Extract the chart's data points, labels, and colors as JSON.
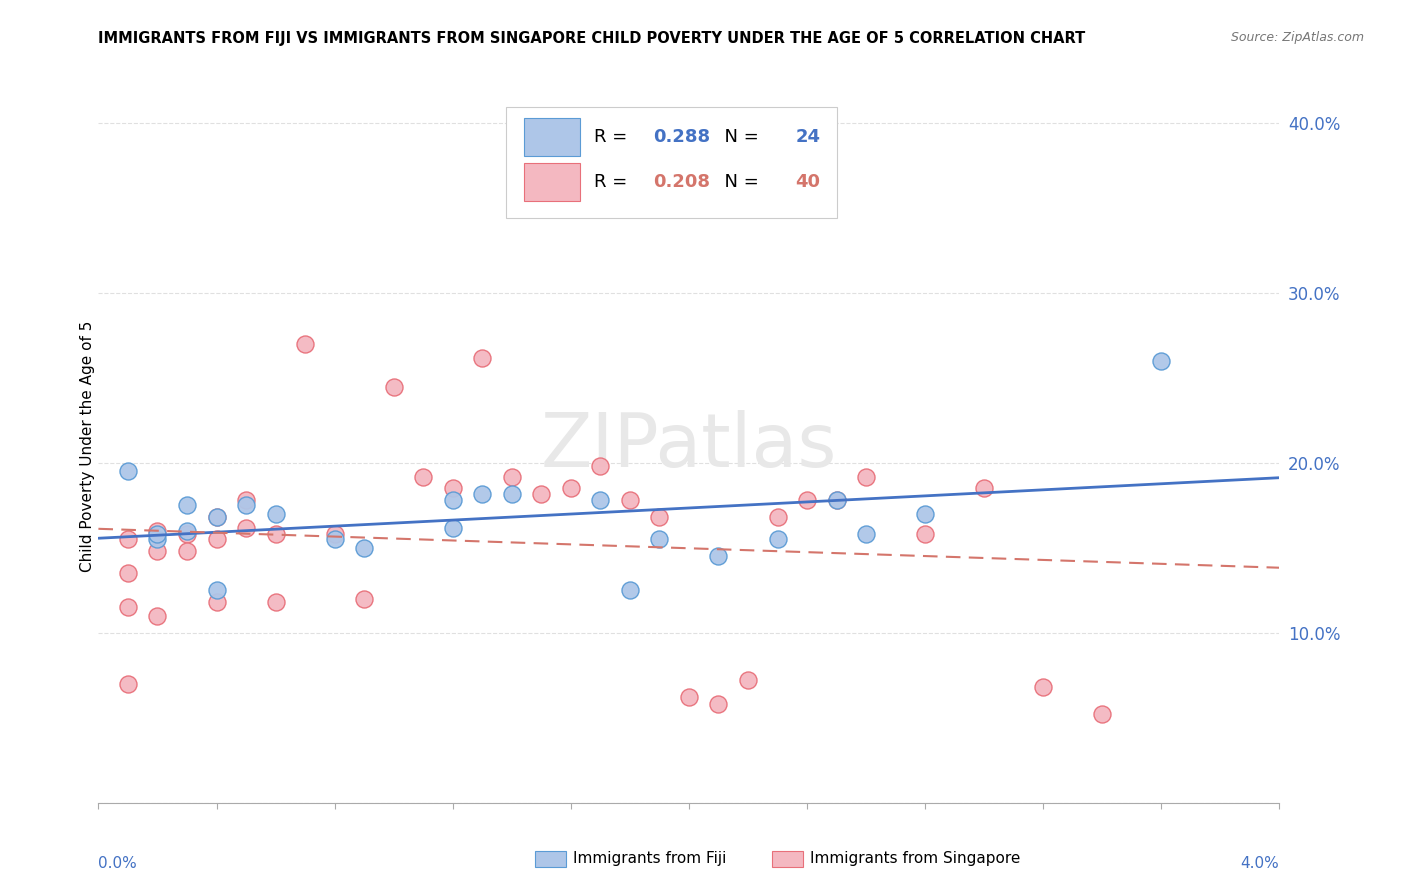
{
  "title": "IMMIGRANTS FROM FIJI VS IMMIGRANTS FROM SINGAPORE CHILD POVERTY UNDER THE AGE OF 5 CORRELATION CHART",
  "source": "Source: ZipAtlas.com",
  "ylabel": "Child Poverty Under the Age of 5",
  "xlim": [
    0.0,
    0.04
  ],
  "ylim": [
    0.0,
    0.42
  ],
  "yticks": [
    0.0,
    0.1,
    0.2,
    0.3,
    0.4
  ],
  "ytick_labels": [
    "",
    "10.0%",
    "20.0%",
    "30.0%",
    "40.0%"
  ],
  "xtick_labels": [
    "0.0%",
    "",
    "",
    "",
    "",
    "",
    "",
    "",
    "",
    "",
    "4.0%"
  ],
  "background_color": "#ffffff",
  "grid_color": "#e0e0e0",
  "fiji_color": "#aec6e8",
  "fiji_edge_color": "#5b9bd5",
  "singapore_color": "#f4b8c1",
  "singapore_edge_color": "#e8707a",
  "fiji_R": "0.288",
  "fiji_N": "24",
  "singapore_R": "0.208",
  "singapore_N": "40",
  "fiji_line_color": "#4472c4",
  "singapore_line_color": "#d4756b",
  "watermark": "ZIPatlas",
  "fiji_scatter_x": [
    0.001,
    0.002,
    0.002,
    0.003,
    0.003,
    0.004,
    0.004,
    0.005,
    0.006,
    0.008,
    0.009,
    0.012,
    0.012,
    0.013,
    0.014,
    0.017,
    0.018,
    0.019,
    0.021,
    0.023,
    0.025,
    0.026,
    0.028,
    0.036
  ],
  "fiji_scatter_y": [
    0.195,
    0.155,
    0.158,
    0.175,
    0.16,
    0.125,
    0.168,
    0.175,
    0.17,
    0.155,
    0.15,
    0.178,
    0.162,
    0.182,
    0.182,
    0.178,
    0.125,
    0.155,
    0.145,
    0.155,
    0.178,
    0.158,
    0.17,
    0.26
  ],
  "singapore_scatter_x": [
    0.001,
    0.001,
    0.001,
    0.001,
    0.002,
    0.002,
    0.002,
    0.003,
    0.003,
    0.004,
    0.004,
    0.004,
    0.005,
    0.005,
    0.006,
    0.006,
    0.007,
    0.008,
    0.009,
    0.01,
    0.011,
    0.012,
    0.013,
    0.014,
    0.015,
    0.016,
    0.017,
    0.018,
    0.019,
    0.02,
    0.021,
    0.022,
    0.023,
    0.024,
    0.025,
    0.026,
    0.028,
    0.03,
    0.032,
    0.034
  ],
  "singapore_scatter_y": [
    0.155,
    0.135,
    0.115,
    0.07,
    0.16,
    0.148,
    0.11,
    0.158,
    0.148,
    0.168,
    0.155,
    0.118,
    0.178,
    0.162,
    0.158,
    0.118,
    0.27,
    0.158,
    0.12,
    0.245,
    0.192,
    0.185,
    0.262,
    0.192,
    0.182,
    0.185,
    0.198,
    0.178,
    0.168,
    0.062,
    0.058,
    0.072,
    0.168,
    0.178,
    0.178,
    0.192,
    0.158,
    0.185,
    0.068,
    0.052
  ]
}
